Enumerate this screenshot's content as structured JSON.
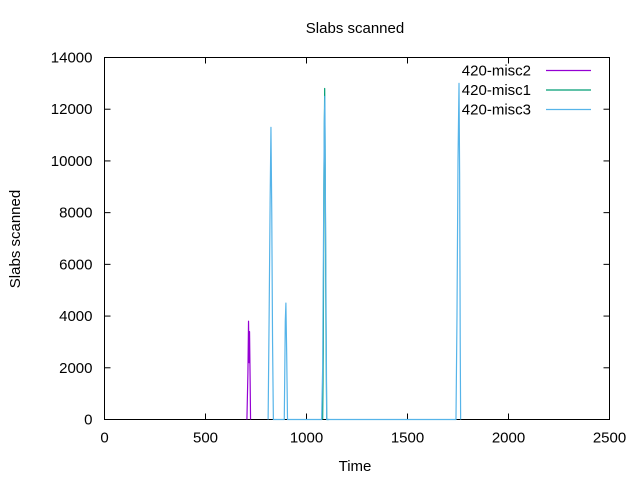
{
  "chart_data": {
    "type": "line",
    "title": "Slabs scanned",
    "xlabel": "Time",
    "ylabel": "Slabs scanned",
    "xlim": [
      0,
      2500
    ],
    "ylim": [
      0,
      14000
    ],
    "x_ticks": [
      0,
      500,
      1000,
      1500,
      2000,
      2500
    ],
    "y_ticks": [
      0,
      2000,
      4000,
      6000,
      8000,
      10000,
      12000,
      14000
    ],
    "x_tick_labels": [
      "0",
      "500",
      "1000",
      "1500",
      "2000",
      "2500"
    ],
    "y_tick_labels": [
      "0",
      "2000",
      "4000",
      "6000",
      "8000",
      "10000",
      "12000",
      "14000"
    ],
    "grid": false,
    "legend_position": "top-right",
    "series": [
      {
        "name": "420-misc2",
        "color": "#9400d3",
        "points": [
          [
            705,
            0
          ],
          [
            710,
            1800
          ],
          [
            713,
            3800
          ],
          [
            716,
            2200
          ],
          [
            718,
            3400
          ],
          [
            721,
            1500
          ],
          [
            723,
            0
          ]
        ]
      },
      {
        "name": "420-misc1",
        "color": "#009e73",
        "points": [
          [
            1080,
            0
          ],
          [
            1083,
            2600
          ],
          [
            1086,
            9000
          ],
          [
            1088,
            11000
          ],
          [
            1090,
            12800
          ],
          [
            1093,
            9000
          ],
          [
            1096,
            4000
          ],
          [
            1100,
            0
          ],
          [
            1110,
            0
          ]
        ]
      },
      {
        "name": "420-misc3",
        "color": "#56b4e9",
        "points": [
          [
            810,
            0
          ],
          [
            815,
            4000
          ],
          [
            820,
            8500
          ],
          [
            824,
            11300
          ],
          [
            828,
            8000
          ],
          [
            832,
            3000
          ],
          [
            836,
            0
          ],
          [
            890,
            0
          ],
          [
            895,
            3800
          ],
          [
            898,
            4500
          ],
          [
            902,
            2500
          ],
          [
            906,
            0
          ],
          [
            1075,
            0
          ],
          [
            1080,
            2000
          ],
          [
            1085,
            8000
          ],
          [
            1088,
            11500
          ],
          [
            1091,
            12500
          ],
          [
            1094,
            8000
          ],
          [
            1098,
            3000
          ],
          [
            1100,
            0
          ],
          [
            1740,
            0
          ],
          [
            1745,
            4000
          ],
          [
            1750,
            10000
          ],
          [
            1755,
            13000
          ],
          [
            1758,
            9500
          ],
          [
            1761,
            3000
          ],
          [
            1763,
            0
          ]
        ]
      }
    ]
  }
}
